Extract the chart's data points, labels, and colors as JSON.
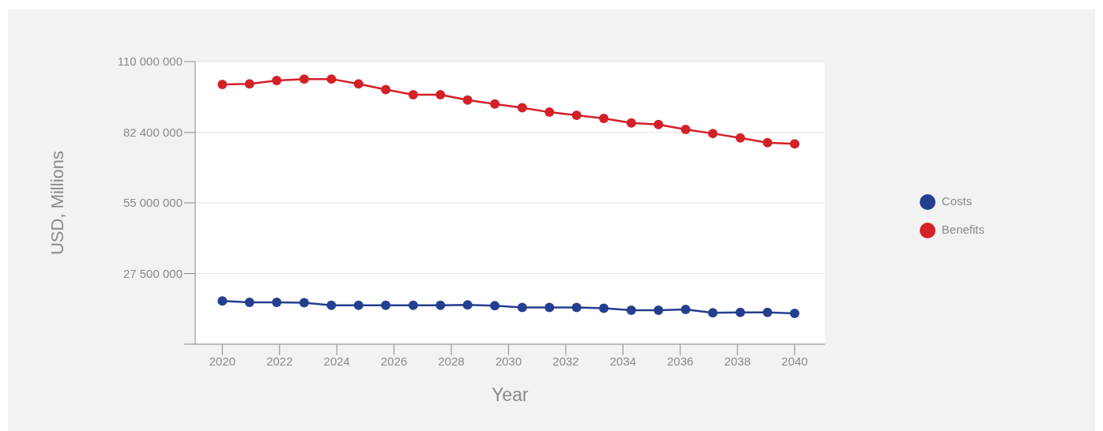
{
  "chart_data": {
    "type": "line",
    "xlabel": "Year",
    "ylabel": "USD, Millions",
    "x": [
      2020,
      2020.95,
      2021.9,
      2022.86,
      2023.81,
      2024.76,
      2025.71,
      2026.67,
      2027.62,
      2028.57,
      2029.52,
      2030.48,
      2031.43,
      2032.38,
      2033.33,
      2034.29,
      2035.24,
      2036.19,
      2037.14,
      2038.1,
      2039.05,
      2040
    ],
    "series": [
      {
        "name": "Costs",
        "color": "#243f8f",
        "values": [
          16800000,
          16300000,
          16300000,
          16100000,
          15100000,
          15100000,
          15100000,
          15100000,
          15100000,
          15300000,
          15000000,
          14300000,
          14300000,
          14300000,
          14000000,
          13200000,
          13200000,
          13500000,
          12200000,
          12400000,
          12400000,
          12000000
        ]
      },
      {
        "name": "Benefits",
        "color": "#d42027",
        "values": [
          101100000,
          101300000,
          102600000,
          103200000,
          103200000,
          101300000,
          99100000,
          97100000,
          97100000,
          95000000,
          93500000,
          92000000,
          90300000,
          89100000,
          87900000,
          86100000,
          85500000,
          83600000,
          82000000,
          80300000,
          78400000,
          78000000
        ]
      }
    ],
    "xlim": [
      2019.05,
      2041.05
    ],
    "xticks": [
      2020,
      2022,
      2024,
      2026,
      2028,
      2030,
      2032,
      2034,
      2036,
      2038,
      2040
    ],
    "ylim": [
      0,
      110000000
    ],
    "yticks": [
      {
        "value": 0,
        "label": null
      },
      {
        "value": 27500000,
        "label": "27 500 000"
      },
      {
        "value": 55000000,
        "label": "55 000 000"
      },
      {
        "value": 82400000,
        "label": "82 400 000"
      },
      {
        "value": 110000000,
        "label": "110 000 000"
      }
    ],
    "grid": "y",
    "legend": "right",
    "marker": "circle",
    "line_style": "solid"
  }
}
